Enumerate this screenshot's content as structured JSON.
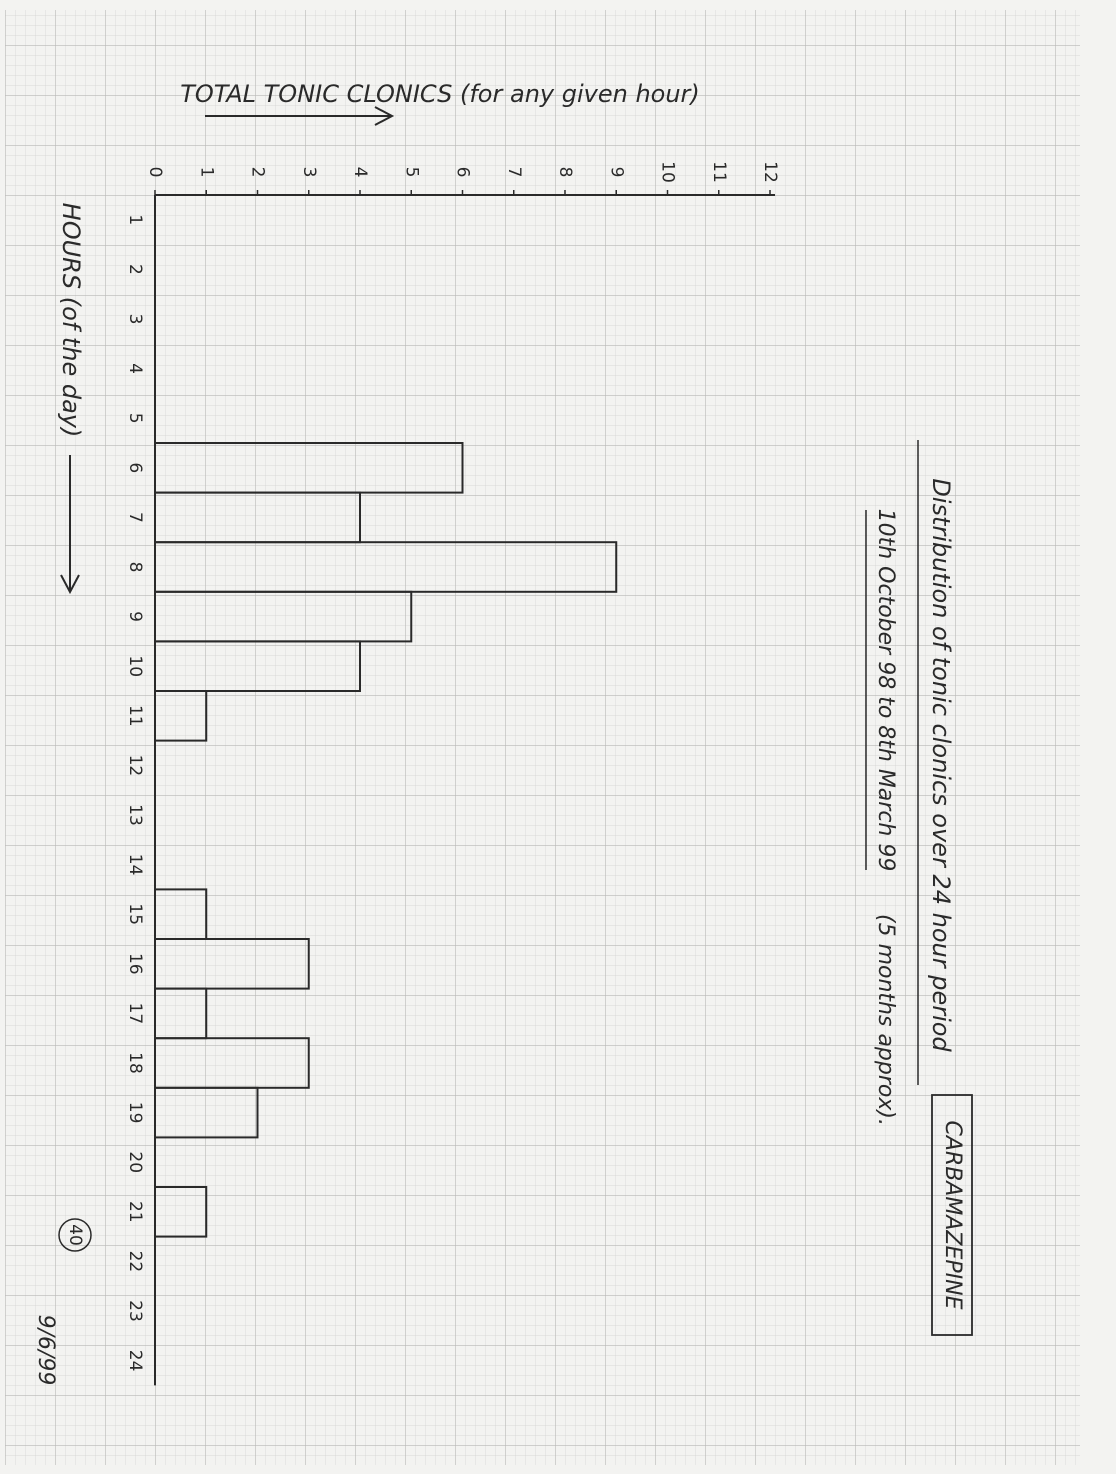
{
  "chart_data": {
    "type": "bar",
    "orientation": "horizontal",
    "title": "Distribution of tonic clonics over 24 hour period",
    "subtitle": "10th October 98 to 8th March 99",
    "note": "(5 months approx).",
    "drug": "CARBAMAZEPINE",
    "x_label": "TOTAL TONIC CLONICS (for any given hour)",
    "y_label": "HOURS (of the day)",
    "page_number": "40",
    "date": "9/6/99",
    "categories": [
      "1",
      "2",
      "3",
      "4",
      "5",
      "6",
      "7",
      "8",
      "9",
      "10",
      "11",
      "12",
      "13",
      "14",
      "15",
      "16",
      "17",
      "18",
      "19",
      "20",
      "21",
      "22",
      "23",
      "24"
    ],
    "values": [
      0,
      0,
      0,
      0,
      0,
      6,
      4,
      9,
      5,
      4,
      1,
      0,
      0,
      0,
      1,
      3,
      1,
      3,
      2,
      0,
      1,
      0,
      0,
      0
    ],
    "color": "#2a2a2a",
    "xlim": [
      0,
      12
    ],
    "xticks": [
      0,
      1,
      2,
      3,
      4,
      5,
      6,
      7,
      8,
      9,
      10,
      11,
      12
    ]
  }
}
